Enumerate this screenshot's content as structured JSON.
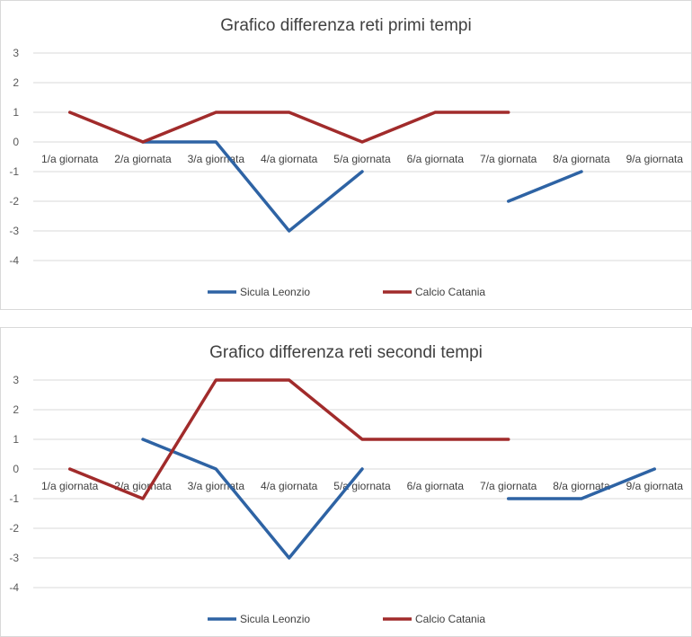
{
  "colors": {
    "sicula": "#2e63a4",
    "catania": "#a12b2b",
    "grid": "#d9d9d9"
  },
  "chart_data": [
    {
      "type": "line",
      "title": "Grafico differenza reti primi tempi",
      "categories": [
        "1/a giornata",
        "2/a giornata",
        "3/a giornata",
        "4/a giornata",
        "5/a giornata",
        "6/a giornata",
        "7/a giornata",
        "8/a giornata",
        "9/a giornata"
      ],
      "ylim": [
        -4,
        3
      ],
      "yticks": [
        3,
        2,
        1,
        0,
        -1,
        -2,
        -3,
        -4
      ],
      "grid": true,
      "legend": "bottom",
      "series": [
        {
          "name": "Sicula Leonzio",
          "color": "#2e63a4",
          "values": [
            null,
            0,
            0,
            -3,
            -1,
            null,
            -2,
            -1,
            null
          ]
        },
        {
          "name": "Calcio Catania",
          "color": "#a12b2b",
          "values": [
            1,
            0,
            1,
            1,
            0,
            1,
            1,
            null,
            null
          ]
        }
      ]
    },
    {
      "type": "line",
      "title": "Grafico differenza reti secondi tempi",
      "categories": [
        "1/a giornata",
        "2/a giornata",
        "3/a giornata",
        "4/a giornata",
        "5/a giornata",
        "6/a giornata",
        "7/a giornata",
        "8/a giornata",
        "9/a giornata"
      ],
      "ylim": [
        -4,
        3
      ],
      "yticks": [
        3,
        2,
        1,
        0,
        -1,
        -2,
        -3,
        -4
      ],
      "grid": true,
      "legend": "bottom",
      "series": [
        {
          "name": "Sicula Leonzio",
          "color": "#2e63a4",
          "values": [
            null,
            1,
            0,
            -3,
            0,
            null,
            -1,
            -1,
            0
          ]
        },
        {
          "name": "Calcio Catania",
          "color": "#a12b2b",
          "values": [
            0,
            -1,
            3,
            3,
            1,
            1,
            1,
            null,
            null
          ]
        }
      ]
    }
  ]
}
